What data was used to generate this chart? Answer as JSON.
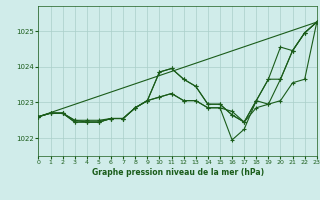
{
  "background_color": "#d0ecea",
  "grid_color": "#aacfca",
  "line_color": "#1a5c1a",
  "title": "Graphe pression niveau de la mer (hPa)",
  "xlim": [
    0,
    23
  ],
  "ylim": [
    1021.5,
    1025.7
  ],
  "yticks": [
    1022,
    1023,
    1024,
    1025
  ],
  "xticks": [
    0,
    1,
    2,
    3,
    4,
    5,
    6,
    7,
    8,
    9,
    10,
    11,
    12,
    13,
    14,
    15,
    16,
    17,
    18,
    19,
    20,
    21,
    22,
    23
  ],
  "series": [
    [
      1022.6,
      1022.7,
      1022.7,
      1022.5,
      1022.45,
      1022.45,
      1022.55,
      1022.55,
      1022.85,
      1023.05,
      1023.85,
      1023.95,
      1023.65,
      1023.45,
      1022.95,
      1022.95,
      1022.65,
      1022.45,
      1023.05,
      1023.65,
      1023.65,
      1024.45,
      1024.95,
      1025.25
    ],
    [
      1022.6,
      1022.7,
      1022.7,
      1022.45,
      1022.45,
      1022.45,
      1022.55,
      1022.55,
      1022.85,
      1023.05,
      1023.15,
      1023.25,
      1023.05,
      1023.05,
      1022.85,
      1022.85,
      1022.75,
      1022.45,
      1022.85,
      1022.95,
      1023.05,
      1023.55,
      1023.65,
      1025.25
    ],
    [
      1022.6,
      1022.7,
      1022.7,
      1022.45,
      1022.45,
      1022.45,
      1022.55,
      1022.55,
      1022.85,
      1023.05,
      1023.15,
      1023.25,
      1023.05,
      1023.05,
      1022.85,
      1022.85,
      1021.95,
      1022.25,
      1023.05,
      1022.95,
      1023.65,
      1024.45,
      1024.95,
      1025.25
    ],
    [
      1022.6,
      1022.7,
      1022.7,
      1022.5,
      1022.5,
      1022.5,
      1022.55,
      1022.55,
      1022.85,
      1023.05,
      1023.85,
      1023.95,
      1023.65,
      1023.45,
      1022.95,
      1022.95,
      1022.65,
      1022.45,
      1023.05,
      1023.65,
      1024.55,
      1024.45,
      1024.95,
      1025.25
    ]
  ],
  "straight_line": [
    1022.6,
    1025.25
  ]
}
